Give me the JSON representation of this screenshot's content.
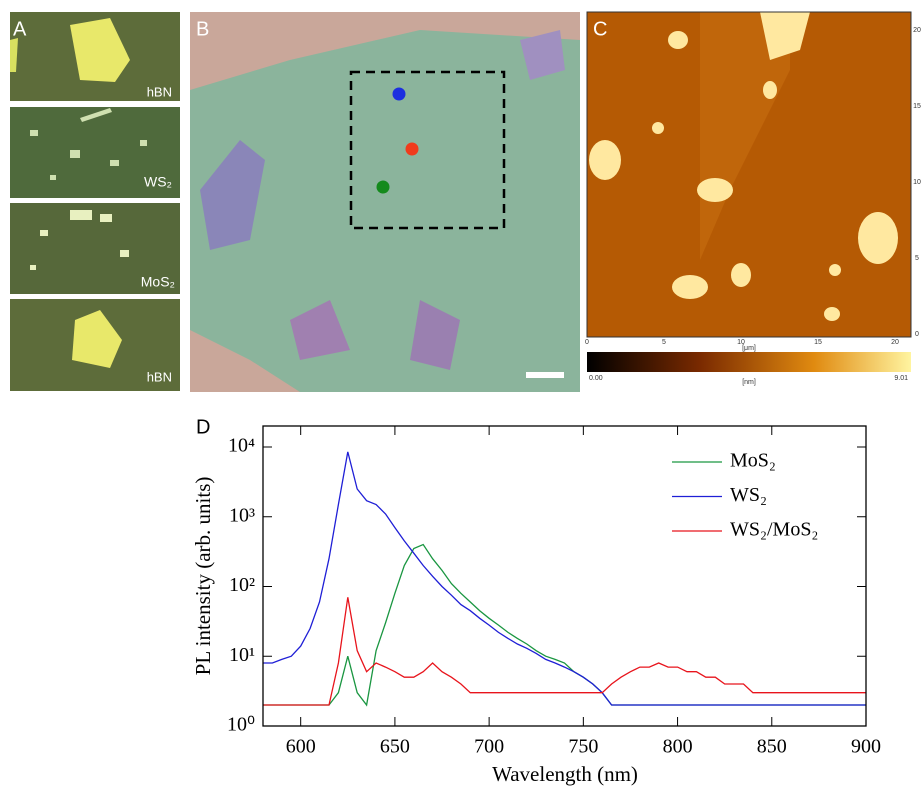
{
  "panels": {
    "A": {
      "label": "A",
      "tiles": [
        "hBN",
        "WS₂",
        "MoS₂",
        "hBN"
      ]
    },
    "B": {
      "label": "B"
    },
    "C": {
      "label": "C",
      "x_ticks": [
        "0",
        "5",
        "10",
        "15",
        "20"
      ],
      "x_unit": "[μm]",
      "y_ticks": [
        "0",
        "5",
        "10",
        "15",
        "20"
      ],
      "colorbar_min": "0.00",
      "colorbar_max": "9.01",
      "colorbar_unit": "[nm]"
    }
  },
  "chart_data": {
    "type": "line",
    "panel_label": "D",
    "x_label": "Wavelength (nm)",
    "y_label": "PL intensity (arb. units)",
    "x": [
      580,
      585,
      590,
      595,
      600,
      605,
      610,
      615,
      620,
      625,
      630,
      635,
      640,
      645,
      650,
      655,
      660,
      665,
      670,
      675,
      680,
      685,
      690,
      695,
      700,
      705,
      710,
      715,
      720,
      725,
      730,
      735,
      740,
      745,
      750,
      755,
      760,
      765,
      770,
      775,
      780,
      785,
      790,
      795,
      800,
      805,
      810,
      815,
      820,
      825,
      830,
      835,
      840,
      845,
      850,
      855,
      860,
      865,
      870,
      875,
      880,
      885,
      890,
      895,
      900
    ],
    "series": [
      {
        "name": "MoS₂",
        "color": "#1a9641",
        "values": [
          2,
          2,
          2,
          2,
          2,
          2,
          2,
          2,
          3,
          10,
          3,
          2,
          12,
          30,
          80,
          200,
          350,
          400,
          250,
          170,
          110,
          80,
          60,
          45,
          35,
          28,
          22,
          18,
          15,
          12,
          10,
          9,
          8,
          6,
          5,
          4,
          3,
          2,
          2,
          2,
          2,
          2,
          2,
          2,
          2,
          2,
          2,
          2,
          2,
          2,
          2,
          2,
          2,
          2,
          2,
          2,
          2,
          2,
          2,
          2,
          2,
          2,
          2,
          2,
          2
        ]
      },
      {
        "name": "WS₂",
        "color": "#1f1fd6",
        "values": [
          8,
          8,
          9,
          10,
          14,
          25,
          60,
          250,
          1500,
          8500,
          2500,
          1700,
          1500,
          1100,
          700,
          450,
          300,
          200,
          140,
          100,
          75,
          55,
          45,
          35,
          28,
          22,
          18,
          15,
          13,
          11,
          9,
          8,
          7,
          6,
          5,
          4,
          3,
          2,
          2,
          2,
          2,
          2,
          2,
          2,
          2,
          2,
          2,
          2,
          2,
          2,
          2,
          2,
          2,
          2,
          2,
          2,
          2,
          2,
          2,
          2,
          2,
          2,
          2,
          2,
          2
        ]
      },
      {
        "name": "WS₂/MoS₂",
        "color": "#e8141c",
        "values": [
          2,
          2,
          2,
          2,
          2,
          2,
          2,
          2,
          8,
          70,
          12,
          6,
          8,
          7,
          6,
          5,
          5,
          6,
          8,
          6,
          5,
          4,
          3,
          3,
          3,
          3,
          3,
          3,
          3,
          3,
          3,
          3,
          3,
          3,
          3,
          3,
          3,
          4,
          5,
          6,
          7,
          7,
          8,
          7,
          7,
          6,
          6,
          5,
          5,
          4,
          4,
          4,
          3,
          3,
          3,
          3,
          3,
          3,
          3,
          3,
          3,
          3,
          3,
          3,
          3
        ]
      }
    ],
    "xlim": [
      580,
      900
    ],
    "xticks": [
      600,
      650,
      700,
      750,
      800,
      850,
      900
    ],
    "ylim": [
      1,
      20000
    ],
    "log_y": true,
    "yticks": [
      {
        "value": 1,
        "label": "10⁰"
      },
      {
        "value": 10,
        "label": "10¹"
      },
      {
        "value": 100,
        "label": "10²"
      },
      {
        "value": 1000,
        "label": "10³"
      },
      {
        "value": 10000,
        "label": "10⁴"
      }
    ],
    "legend": "upper right"
  }
}
